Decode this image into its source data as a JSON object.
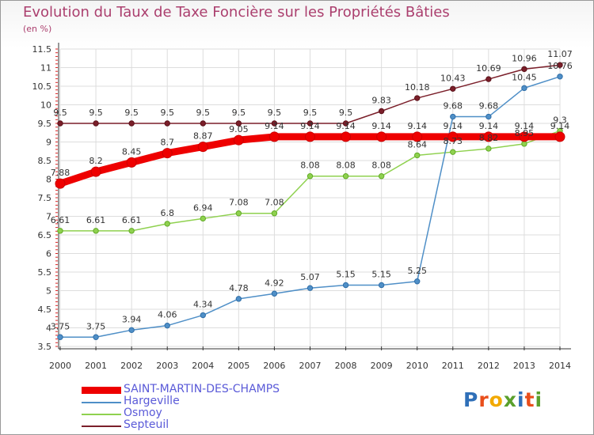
{
  "title": "Evolution du Taux de Taxe Foncière sur les Propriétés Bâties",
  "unit_label": "(en %)",
  "logo_text": "Proxiti",
  "logo_colors": [
    "#2f6fb8",
    "#e94e1b",
    "#f2a900",
    "#5aa02c",
    "#2f6fb8",
    "#e94e1b",
    "#5aa02c"
  ],
  "chart_data": {
    "type": "line",
    "title": "Evolution du Taux de Taxe Foncière sur les Propriétés Bâties",
    "ylabel": "(en %)",
    "xlabel": "",
    "ylim": [
      3.5,
      11.5
    ],
    "yticks": [
      "3.5",
      "4",
      "4.5",
      "5",
      "5.5",
      "6",
      "6.5",
      "7",
      "7.5",
      "8",
      "8.5",
      "9",
      "9.5",
      "10",
      "10.5",
      "11",
      "11.5"
    ],
    "categories": [
      "2000",
      "2001",
      "2002",
      "2003",
      "2004",
      "2005",
      "2006",
      "2007",
      "2008",
      "2009",
      "2010",
      "2011",
      "2012",
      "2013",
      "2014"
    ],
    "grid": true,
    "legend_position": "bottom",
    "series": [
      {
        "name": "SAINT-MARTIN-DES-CHAMPS",
        "color": "#ee0000",
        "values": [
          7.88,
          8.2,
          8.45,
          8.7,
          8.87,
          9.05,
          9.14,
          9.14,
          9.14,
          9.14,
          9.14,
          9.14,
          9.14,
          9.14,
          9.14
        ],
        "labels": [
          "7.88",
          "8.2",
          "8.45",
          "8.7",
          "8.87",
          "9.05",
          "9.14",
          "9.14",
          "9.14",
          "9.14",
          "9.14",
          "9.14",
          "9.14",
          "9.14",
          "9.14"
        ]
      },
      {
        "name": "Hargeville",
        "color": "#4f8fc7",
        "values": [
          3.75,
          3.75,
          3.94,
          4.06,
          4.34,
          4.78,
          4.92,
          5.07,
          5.15,
          5.15,
          5.25,
          9.68,
          9.68,
          10.45,
          10.76
        ],
        "labels": [
          "3.75",
          "3.75",
          "3.94",
          "4.06",
          "4.34",
          "4.78",
          "4.92",
          "5.07",
          "5.15",
          "5.15",
          "5.25",
          "9.68",
          "9.68",
          "10.45",
          "10.76"
        ]
      },
      {
        "name": "Osmoy",
        "color": "#8fd14f",
        "values": [
          6.61,
          6.61,
          6.61,
          6.8,
          6.94,
          7.08,
          7.08,
          8.08,
          8.08,
          8.08,
          8.64,
          8.73,
          8.82,
          8.95,
          9.3
        ],
        "labels": [
          "6.61",
          "6.61",
          "6.61",
          "6.8",
          "6.94",
          "7.08",
          "7.08",
          "8.08",
          "8.08",
          "8.08",
          "8.64",
          "8.73",
          "8.82",
          "8.95",
          "9.3"
        ]
      },
      {
        "name": "Septeuil",
        "color": "#7b1f2a",
        "values": [
          9.5,
          9.5,
          9.5,
          9.5,
          9.5,
          9.5,
          9.5,
          9.5,
          9.5,
          9.83,
          10.18,
          10.43,
          10.69,
          10.96,
          11.07
        ],
        "labels": [
          "9.5",
          "9.5",
          "9.5",
          "9.5",
          "9.5",
          "9.5",
          "9.5",
          "9.5",
          "9.5",
          "9.83",
          "10.18",
          "10.43",
          "10.69",
          "10.96",
          "11.07"
        ]
      }
    ]
  }
}
